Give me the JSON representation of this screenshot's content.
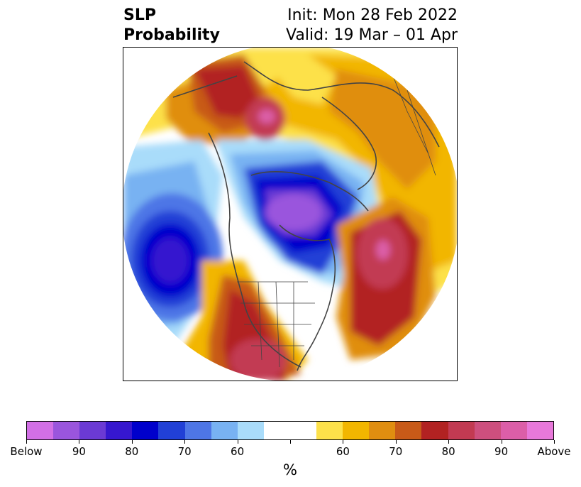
{
  "title": {
    "left_line1": "SLP",
    "left_line2": "Probability",
    "right_line1": "Init: Mon 28 Feb 2022",
    "right_line2": "Valid: 19 Mar – 01 Apr"
  },
  "map": {
    "projection": "north polar stereographic",
    "background_color": "#ffffff",
    "coastline_color": "#444444"
  },
  "colorbar": {
    "unit_label": "%",
    "colors": [
      "#d26fe6",
      "#9a55dd",
      "#6b3ad4",
      "#3617cf",
      "#0000cc",
      "#2140d6",
      "#4e76e6",
      "#78b2f2",
      "#a9dcfa",
      "#ffffff",
      "#ffffff",
      "#fde14a",
      "#f2b600",
      "#e08e10",
      "#c85a18",
      "#b22222",
      "#c23a52",
      "#cd4f7e",
      "#dc5ea8",
      "#e878da"
    ],
    "tick_labels": [
      "Below",
      "90",
      "80",
      "70",
      "60",
      "",
      "60",
      "70",
      "80",
      "90",
      "Above"
    ]
  },
  "anomaly_regions": [
    {
      "name": "north-pacific-below",
      "category": "Below"
    },
    {
      "name": "canada-arctic-below",
      "category": "Below"
    },
    {
      "name": "north-atlantic-above",
      "category": "Above"
    },
    {
      "name": "western-us-above",
      "category": "Above"
    },
    {
      "name": "siberia-above",
      "category": "Above"
    },
    {
      "name": "eurasia-above",
      "category": "Above"
    }
  ]
}
